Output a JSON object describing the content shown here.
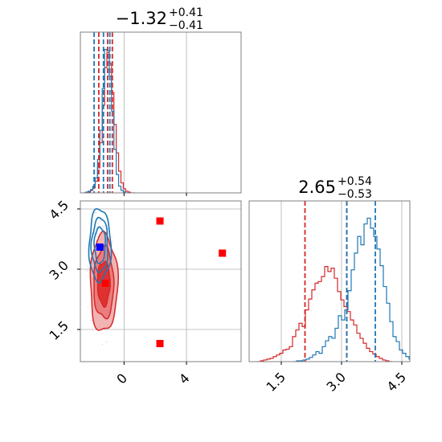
{
  "chart_data": {
    "type": "corner",
    "grid": true,
    "colors": {
      "blue": "#1f77b4",
      "red": "#d62728",
      "red_fill_outer": "#f2b3b3",
      "red_fill_mid": "#ea7d7d",
      "red_fill_inner": "#e03131",
      "marker_red": "#ff0000",
      "marker_blue": "#0000ff",
      "grid": "#b0b0b0",
      "frame": "#808080"
    },
    "param1": {
      "title": {
        "value": "−1.32",
        "upper": "+0.41",
        "lower": "−0.41"
      },
      "xlim": [
        -2.8,
        7.5
      ],
      "ticks": [
        0,
        4
      ],
      "tick_labels": [
        "0",
        "4"
      ],
      "hist_blue": {
        "bin_start": -2.6,
        "bin_width": 0.15,
        "counts": [
          0,
          1,
          2,
          4,
          8,
          18,
          40,
          75,
          125,
          172,
          170,
          140,
          98,
          52,
          22,
          8,
          3,
          1,
          0
        ]
      },
      "hist_red": {
        "bin_start": -2.6,
        "bin_width": 0.15,
        "counts": [
          0,
          0,
          1,
          3,
          6,
          14,
          30,
          60,
          105,
          150,
          168,
          155,
          120,
          82,
          48,
          26,
          12,
          5,
          2,
          1,
          0,
          0
        ]
      },
      "quantiles_blue": [
        -1.92,
        -1.32,
        -0.91
      ],
      "quantiles_red": [
        -1.62,
        -1.05,
        -0.75
      ]
    },
    "param2": {
      "title": {
        "value": "2.65",
        "upper": "+0.54",
        "lower": "−0.53"
      },
      "lim": [
        0.7,
        4.7
      ],
      "ticks": [
        1.5,
        3.0,
        4.5
      ],
      "tick_labels": [
        "1.5",
        "3.0",
        "4.5"
      ],
      "hist_blue": {
        "bin_start": 1.8,
        "bin_width": 0.08,
        "counts": [
          0,
          1,
          1,
          2,
          3,
          5,
          8,
          12,
          10,
          18,
          25,
          30,
          28,
          40,
          55,
          50,
          62,
          85,
          110,
          130,
          150,
          140,
          165,
          172,
          160,
          150,
          135,
          115,
          90,
          70,
          48,
          30,
          24,
          14,
          10,
          6,
          3,
          2,
          1,
          0
        ]
      },
      "hist_red": {
        "bin_start": 0.9,
        "bin_width": 0.08,
        "counts": [
          0,
          1,
          2,
          3,
          4,
          6,
          8,
          10,
          14,
          15,
          18,
          30,
          38,
          46,
          42,
          62,
          75,
          86,
          94,
          96,
          102,
          114,
          108,
          112,
          100,
          84,
          74,
          66,
          60,
          50,
          44,
          34,
          28,
          22,
          16,
          12,
          9,
          6,
          4,
          2,
          1,
          0
        ]
      },
      "quantiles_blue": [
        3.13,
        3.84
      ],
      "quantiles_red": [
        2.09,
        3.13
      ]
    },
    "scatter_markers": [
      {
        "x": 2.3,
        "y": 4.2,
        "color": "red"
      },
      {
        "x": 6.3,
        "y": 3.4,
        "color": "red"
      },
      {
        "x": 2.3,
        "y": 1.15,
        "color": "red"
      },
      {
        "x": -1.2,
        "y": 2.65,
        "color": "red"
      },
      {
        "x": -1.55,
        "y": 3.55,
        "color": "blue"
      }
    ],
    "contours_red": {
      "center": [
        -1.3,
        2.65
      ],
      "sigmas": [
        0.4,
        0.55
      ],
      "levels": [
        1.0,
        1.6,
        2.2
      ]
    },
    "contours_blue": {
      "center": [
        -1.55,
        3.6
      ],
      "sigmas": [
        0.35,
        0.45
      ],
      "levels": [
        1.0,
        1.5,
        2.0
      ]
    }
  }
}
